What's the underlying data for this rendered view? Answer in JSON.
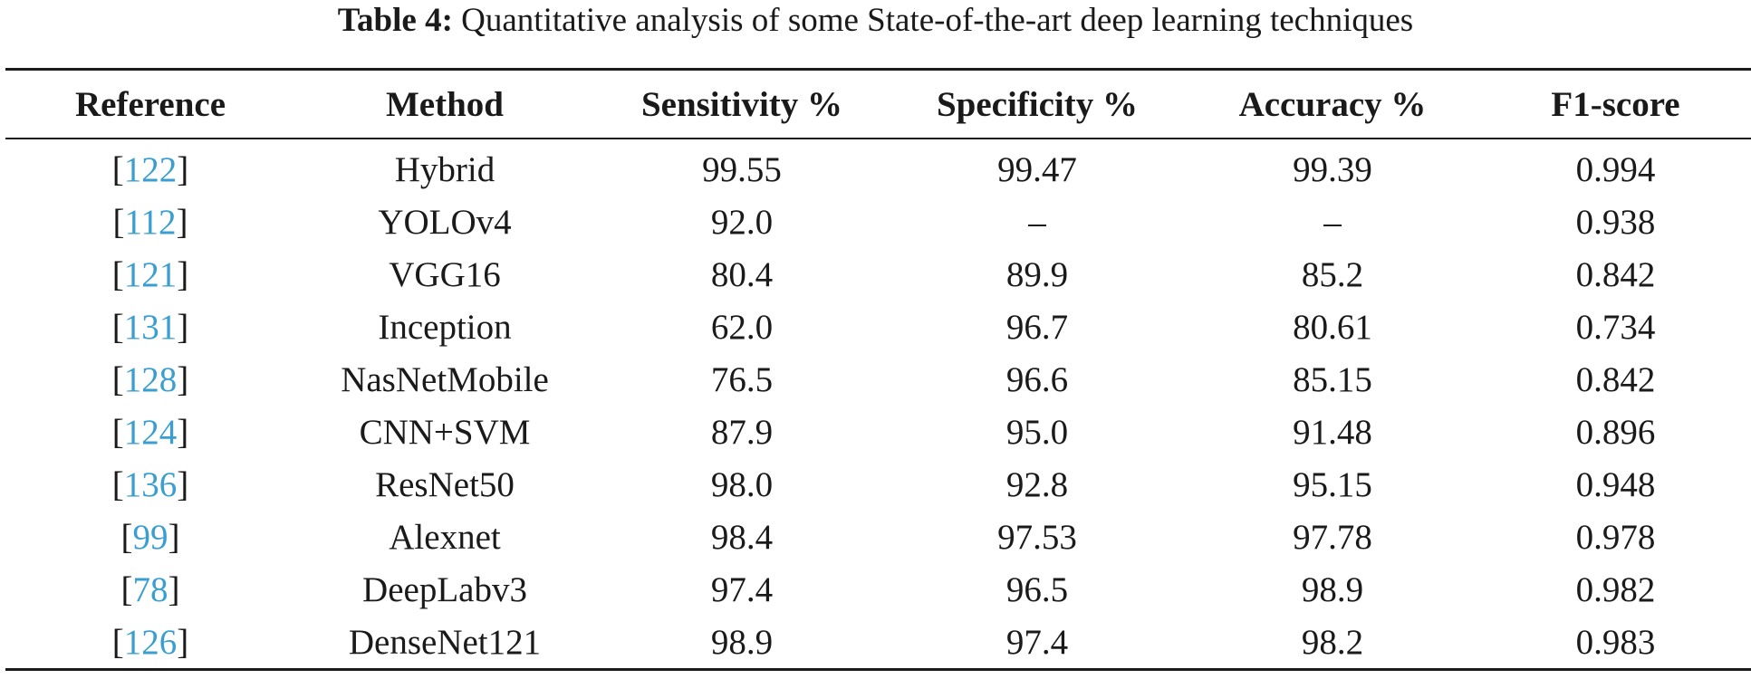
{
  "caption": {
    "label": "Table 4:",
    "text": " Quantitative analysis of some State-of-the-art deep learning techniques"
  },
  "colors": {
    "text": "#1a1a1a",
    "citation_link": "#3a9fd0"
  },
  "table": {
    "headers": [
      "Reference",
      "Method",
      "Sensitivity %",
      "Specificity %",
      "Accuracy %",
      "F1-score"
    ],
    "rows": [
      {
        "ref": "122",
        "method": "Hybrid",
        "sensitivity": "99.55",
        "specificity": "99.47",
        "accuracy": "99.39",
        "f1": "0.994"
      },
      {
        "ref": "112",
        "method": "YOLOv4",
        "sensitivity": "92.0",
        "specificity": "–",
        "accuracy": "–",
        "f1": "0.938"
      },
      {
        "ref": "121",
        "method": "VGG16",
        "sensitivity": "80.4",
        "specificity": "89.9",
        "accuracy": "85.2",
        "f1": "0.842"
      },
      {
        "ref": "131",
        "method": "Inception",
        "sensitivity": "62.0",
        "specificity": "96.7",
        "accuracy": "80.61",
        "f1": "0.734"
      },
      {
        "ref": "128",
        "method": "NasNetMobile",
        "sensitivity": "76.5",
        "specificity": "96.6",
        "accuracy": "85.15",
        "f1": "0.842"
      },
      {
        "ref": "124",
        "method": "CNN+SVM",
        "sensitivity": "87.9",
        "specificity": "95.0",
        "accuracy": "91.48",
        "f1": "0.896"
      },
      {
        "ref": "136",
        "method": "ResNet50",
        "sensitivity": "98.0",
        "specificity": "92.8",
        "accuracy": "95.15",
        "f1": "0.948"
      },
      {
        "ref": "99",
        "method": "Alexnet",
        "sensitivity": "98.4",
        "specificity": "97.53",
        "accuracy": "97.78",
        "f1": "0.978"
      },
      {
        "ref": "78",
        "method": "DeepLabv3",
        "sensitivity": "97.4",
        "specificity": "96.5",
        "accuracy": "98.9",
        "f1": "0.982"
      },
      {
        "ref": "126",
        "method": "DenseNet121",
        "sensitivity": "98.9",
        "specificity": "97.4",
        "accuracy": "98.2",
        "f1": "0.983"
      }
    ]
  }
}
